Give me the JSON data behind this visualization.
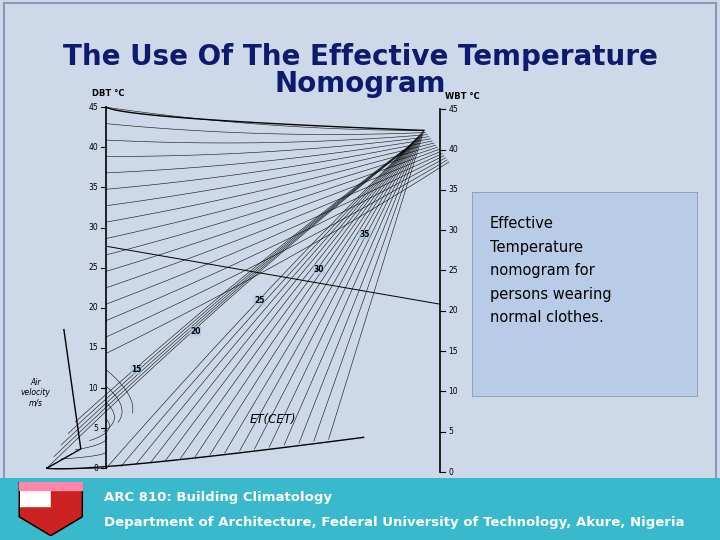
{
  "title_line1": "The Use Of The Effective Temperature",
  "title_line2": "Nomogram",
  "title_color": "#0d1a6e",
  "title_fontsize": 20,
  "slide_bg": "#cdd8e8",
  "nomo_bg": "#a8c4e8",
  "footer_bg_top": "#3ab8cc",
  "footer_bg_bot": "#2090a8",
  "footer_text1": "ARC 810: Building Climatology",
  "footer_text2": "Department of Architecture, Federal University of Technology, Akure, Nigeria",
  "footer_text_color": "#ffffff",
  "ann_box_bg": "#b8cce8",
  "ann_box_border": "#8899bb",
  "annotation_text": "Effective\nTemperature\nnomogram for\npersons wearing\nnormal clothes.",
  "annotation_fontsize": 10.5,
  "dbt_label": "DBT °C",
  "wbt_label": "WBT °C",
  "et_label": "ET(CET)",
  "air_vel_label": "Air\nvelocity\nm/s"
}
